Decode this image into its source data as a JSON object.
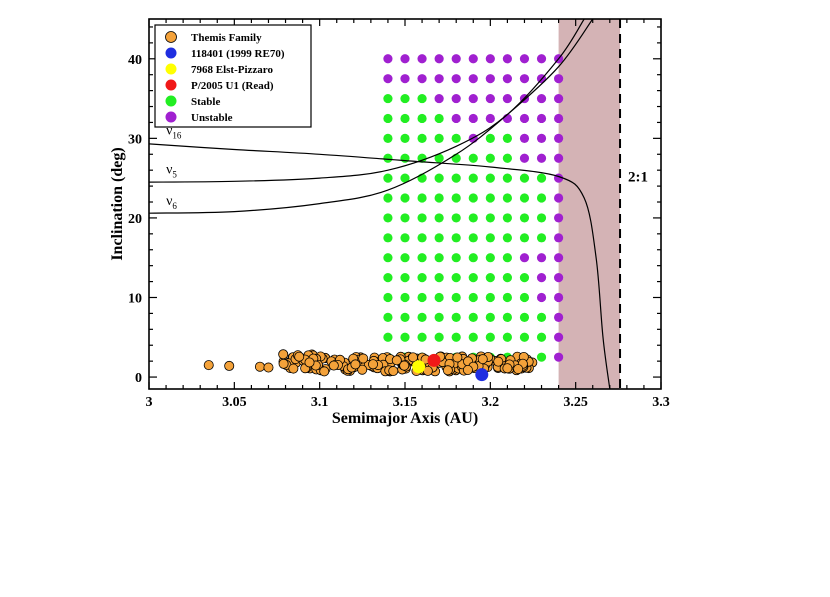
{
  "chart_data": {
    "type": "scatter",
    "xlabel": "Semimajor Axis (AU)",
    "ylabel": "Inclination (deg)",
    "xlim": [
      3.0,
      3.3
    ],
    "ylim": [
      -1.5,
      45
    ],
    "x_ticks": [
      "3",
      "3.05",
      "3.1",
      "3.15",
      "3.2",
      "3.25",
      "3.3"
    ],
    "y_ticks": [
      "0",
      "10",
      "20",
      "30",
      "40"
    ],
    "legend_position": "top-left",
    "legend": [
      {
        "label": "Themis Family",
        "color": "#f4a23a"
      },
      {
        "label": "118401 (1999 RE70)",
        "color": "#1f2ee0"
      },
      {
        "label": "7968 Elst-Pizzaro",
        "color": "#ffff00"
      },
      {
        "label": "P/2005 U1 (Read)",
        "color": "#f01818"
      },
      {
        "label": "Stable",
        "color": "#22ee22"
      },
      {
        "label": "Unstable",
        "color": "#a020d0"
      }
    ],
    "series": [
      {
        "name": "118401 (1999 RE70)",
        "points": [
          [
            3.195,
            0.3
          ]
        ]
      },
      {
        "name": "7968 Elst-Pizzaro",
        "points": [
          [
            3.158,
            1.3
          ]
        ]
      },
      {
        "name": "P/2005 U1 (Read)",
        "points": [
          [
            3.167,
            2.1
          ]
        ]
      }
    ],
    "themis_family": {
      "a_range": [
        3.035,
        3.225
      ],
      "inclination_range": [
        0.5,
        3.0
      ],
      "outliers": [
        [
          3.035,
          1.5
        ],
        [
          3.047,
          1.4
        ],
        [
          3.065,
          1.3
        ],
        [
          3.07,
          1.2
        ]
      ]
    },
    "grid_stability": {
      "a_values": [
        3.14,
        3.15,
        3.16,
        3.17,
        3.18,
        3.19,
        3.2,
        3.21,
        3.22,
        3.23,
        3.24
      ],
      "i_values": [
        2.5,
        5,
        7.5,
        10,
        12.5,
        15,
        17.5,
        20,
        22.5,
        25,
        27.5,
        30,
        32.5,
        35,
        37.5,
        40
      ],
      "unstable_cells": [
        [
          3.24,
          2.5
        ],
        [
          3.24,
          5
        ],
        [
          3.24,
          7.5
        ],
        [
          3.23,
          10
        ],
        [
          3.24,
          10
        ],
        [
          3.23,
          12.5
        ],
        [
          3.24,
          12.5
        ],
        [
          3.22,
          15
        ],
        [
          3.23,
          15
        ],
        [
          3.24,
          15
        ],
        [
          3.24,
          17.5
        ],
        [
          3.24,
          20
        ],
        [
          3.24,
          22.5
        ],
        [
          3.24,
          25
        ],
        [
          3.22,
          27.5
        ],
        [
          3.23,
          27.5
        ],
        [
          3.24,
          27.5
        ],
        [
          3.19,
          30
        ],
        [
          3.22,
          30
        ],
        [
          3.23,
          30
        ],
        [
          3.24,
          30
        ],
        [
          3.18,
          32.5
        ],
        [
          3.19,
          32.5
        ],
        [
          3.2,
          32.5
        ],
        [
          3.21,
          32.5
        ],
        [
          3.22,
          32.5
        ],
        [
          3.23,
          32.5
        ],
        [
          3.24,
          32.5
        ],
        [
          3.17,
          35
        ],
        [
          3.18,
          35
        ],
        [
          3.19,
          35
        ],
        [
          3.2,
          35
        ],
        [
          3.21,
          35
        ],
        [
          3.22,
          35
        ],
        [
          3.23,
          35
        ],
        [
          3.24,
          35
        ],
        [
          3.14,
          37.5
        ],
        [
          3.15,
          37.5
        ],
        [
          3.16,
          37.5
        ],
        [
          3.17,
          37.5
        ],
        [
          3.18,
          37.5
        ],
        [
          3.19,
          37.5
        ],
        [
          3.2,
          37.5
        ],
        [
          3.21,
          37.5
        ],
        [
          3.22,
          37.5
        ],
        [
          3.23,
          37.5
        ],
        [
          3.24,
          37.5
        ],
        [
          3.14,
          40
        ],
        [
          3.15,
          40
        ],
        [
          3.16,
          40
        ],
        [
          3.17,
          40
        ],
        [
          3.18,
          40
        ],
        [
          3.19,
          40
        ],
        [
          3.2,
          40
        ],
        [
          3.21,
          40
        ],
        [
          3.22,
          40
        ],
        [
          3.23,
          40
        ],
        [
          3.24,
          40
        ]
      ]
    },
    "resonance_curves": [
      {
        "label": "ν16",
        "points": [
          [
            3.0,
            29.3
          ],
          [
            3.05,
            28.6
          ],
          [
            3.1,
            28.0
          ],
          [
            3.15,
            27.2
          ],
          [
            3.2,
            26.4
          ],
          [
            3.24,
            25.2
          ],
          [
            3.255,
            22.5
          ],
          [
            3.262,
            15
          ],
          [
            3.266,
            5
          ],
          [
            3.27,
            -1.5
          ]
        ]
      },
      {
        "label": "ν5",
        "points": [
          [
            3.0,
            24.5
          ],
          [
            3.05,
            24.6
          ],
          [
            3.1,
            25.0
          ],
          [
            3.14,
            26.0
          ],
          [
            3.18,
            29.0
          ],
          [
            3.21,
            33.0
          ],
          [
            3.24,
            40.0
          ],
          [
            3.255,
            45.0
          ]
        ]
      },
      {
        "label": "ν6",
        "points": [
          [
            3.0,
            20.6
          ],
          [
            3.05,
            20.8
          ],
          [
            3.1,
            21.8
          ],
          [
            3.14,
            23.5
          ],
          [
            3.18,
            28.0
          ],
          [
            3.21,
            33.0
          ],
          [
            3.24,
            39.0
          ],
          [
            3.26,
            45.0
          ]
        ]
      }
    ],
    "resonance_labels": [
      {
        "base": "ν",
        "sub": "16"
      },
      {
        "base": "ν",
        "sub": "5"
      },
      {
        "base": "ν",
        "sub": "6"
      }
    ],
    "resonance_region": {
      "label": "2:1",
      "a_start": 3.24,
      "a_line": 3.276,
      "color": "#d4b3b5"
    }
  }
}
